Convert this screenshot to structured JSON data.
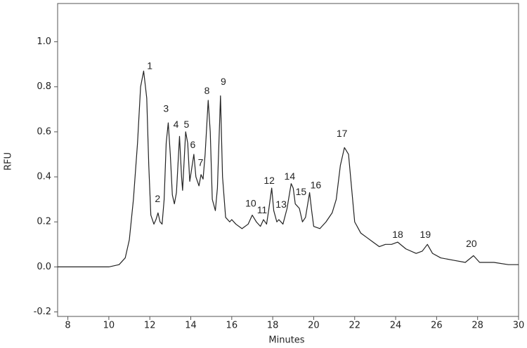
{
  "chart_data": {
    "type": "line",
    "x_label": "Minutes",
    "y_label": "RFU",
    "xlim": [
      7.5,
      30
    ],
    "ylim": [
      -0.22,
      1.17
    ],
    "xticks": [
      8,
      10,
      12,
      14,
      16,
      18,
      20,
      22,
      24,
      26,
      28,
      30
    ],
    "yticks": [
      -0.2,
      {
        "value": 0,
        "label": "0.0"
      },
      0.2,
      0.4,
      0.6,
      0.8,
      {
        "value": 1,
        "label": "1.0"
      }
    ],
    "x": [
      7.5,
      10.0,
      10.5,
      10.8,
      11.0,
      11.2,
      11.4,
      11.55,
      11.7,
      11.85,
      11.95,
      12.05,
      12.2,
      12.3,
      12.4,
      12.5,
      12.6,
      12.7,
      12.8,
      12.9,
      13.0,
      13.1,
      13.2,
      13.3,
      13.45,
      13.55,
      13.6,
      13.75,
      13.85,
      13.95,
      14.05,
      14.15,
      14.25,
      14.4,
      14.5,
      14.6,
      14.7,
      14.85,
      14.95,
      15.05,
      15.2,
      15.3,
      15.45,
      15.55,
      15.7,
      15.9,
      16.0,
      16.2,
      16.5,
      16.8,
      17.0,
      17.2,
      17.4,
      17.55,
      17.7,
      17.8,
      17.95,
      18.05,
      18.2,
      18.3,
      18.5,
      18.7,
      18.9,
      19.0,
      19.1,
      19.3,
      19.45,
      19.6,
      19.8,
      19.9,
      20.0,
      20.3,
      20.6,
      20.9,
      21.1,
      21.3,
      21.5,
      21.7,
      21.85,
      22.0,
      22.3,
      22.6,
      22.9,
      23.2,
      23.5,
      23.8,
      24.1,
      24.5,
      25.0,
      25.3,
      25.55,
      25.8,
      26.2,
      26.8,
      27.4,
      27.8,
      28.1,
      28.8,
      29.5,
      30.0
    ],
    "series": [
      {
        "color": "#222222",
        "values": [
          0.0,
          0.0,
          0.01,
          0.04,
          0.12,
          0.3,
          0.55,
          0.8,
          0.87,
          0.75,
          0.45,
          0.23,
          0.19,
          0.21,
          0.24,
          0.2,
          0.19,
          0.3,
          0.55,
          0.64,
          0.5,
          0.32,
          0.28,
          0.33,
          0.58,
          0.4,
          0.34,
          0.6,
          0.55,
          0.38,
          0.44,
          0.5,
          0.4,
          0.36,
          0.41,
          0.39,
          0.5,
          0.74,
          0.6,
          0.3,
          0.25,
          0.35,
          0.76,
          0.4,
          0.22,
          0.2,
          0.21,
          0.19,
          0.17,
          0.19,
          0.23,
          0.2,
          0.18,
          0.21,
          0.19,
          0.25,
          0.35,
          0.25,
          0.2,
          0.21,
          0.19,
          0.26,
          0.37,
          0.35,
          0.28,
          0.26,
          0.2,
          0.22,
          0.33,
          0.25,
          0.18,
          0.17,
          0.2,
          0.24,
          0.3,
          0.45,
          0.53,
          0.5,
          0.35,
          0.2,
          0.15,
          0.13,
          0.11,
          0.09,
          0.1,
          0.1,
          0.11,
          0.08,
          0.06,
          0.07,
          0.1,
          0.06,
          0.04,
          0.03,
          0.02,
          0.05,
          0.02,
          0.02,
          0.01,
          0.01
        ]
      }
    ],
    "annotations": [
      {
        "text": "1",
        "x": 12.0,
        "y": 0.89
      },
      {
        "text": "2",
        "x": 12.38,
        "y": 0.3
      },
      {
        "text": "3",
        "x": 12.79,
        "y": 0.7
      },
      {
        "text": "4",
        "x": 13.28,
        "y": 0.63
      },
      {
        "text": "5",
        "x": 13.79,
        "y": 0.63
      },
      {
        "text": "6",
        "x": 14.1,
        "y": 0.54
      },
      {
        "text": "7",
        "x": 14.48,
        "y": 0.46
      },
      {
        "text": "8",
        "x": 14.79,
        "y": 0.78
      },
      {
        "text": "9",
        "x": 15.59,
        "y": 0.82
      },
      {
        "text": "10",
        "x": 16.93,
        "y": 0.28
      },
      {
        "text": "11",
        "x": 17.48,
        "y": 0.25
      },
      {
        "text": "12",
        "x": 17.83,
        "y": 0.38
      },
      {
        "text": "13",
        "x": 18.41,
        "y": 0.275
      },
      {
        "text": "14",
        "x": 18.83,
        "y": 0.4
      },
      {
        "text": "15",
        "x": 19.38,
        "y": 0.33
      },
      {
        "text": "16",
        "x": 20.1,
        "y": 0.36
      },
      {
        "text": "17",
        "x": 21.38,
        "y": 0.59
      },
      {
        "text": "18",
        "x": 24.1,
        "y": 0.14
      },
      {
        "text": "19",
        "x": 25.45,
        "y": 0.14
      },
      {
        "text": "20",
        "x": 27.7,
        "y": 0.1
      }
    ]
  }
}
